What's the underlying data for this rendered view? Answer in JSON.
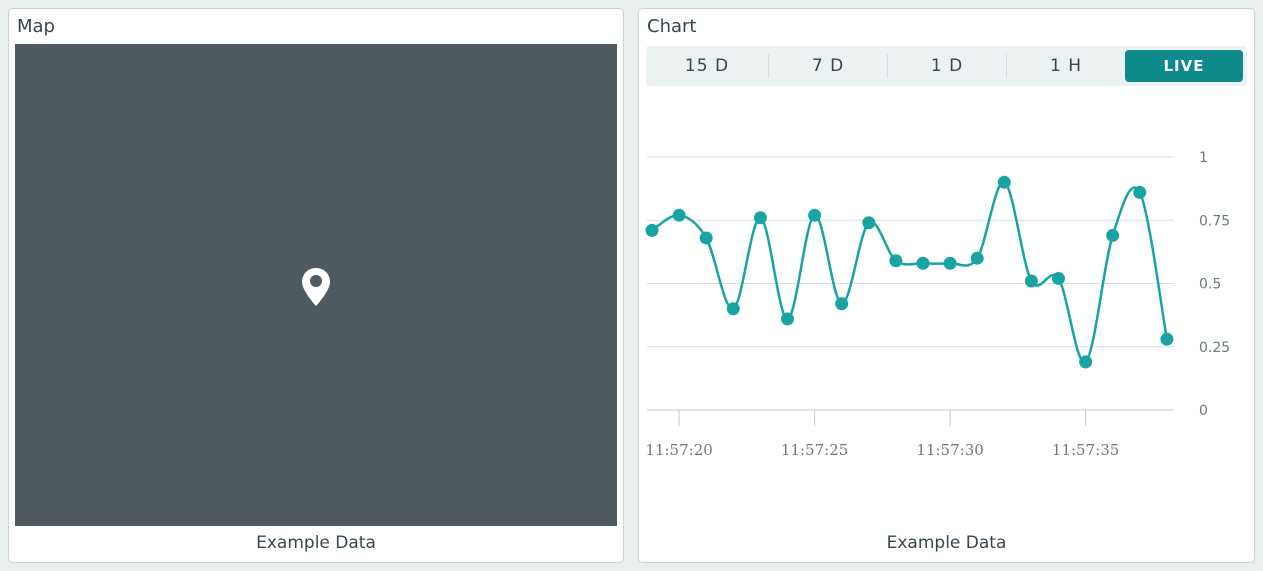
{
  "map_widget": {
    "title": "Map",
    "footer": "Example Data",
    "map_background": "#4e5a60",
    "marker_icon": "map-pin-icon"
  },
  "chart_widget": {
    "title": "Chart",
    "footer": "Example Data",
    "ranges": [
      "15 D",
      "7 D",
      "1 D",
      "1 H",
      "LIVE"
    ],
    "selected_range": "LIVE",
    "accent_color": "#0e8a8a",
    "line_color": "#1aa3a3"
  },
  "chart_data": {
    "type": "line",
    "smooth": true,
    "markers": true,
    "grid": true,
    "y_axis_position": "right",
    "ylim": [
      0,
      1
    ],
    "yticks": [
      "0",
      "0.25",
      "0.5",
      "0.75",
      "1"
    ],
    "x_ticks": [
      "11:57:20",
      "11:57:25",
      "11:57:30",
      "11:57:35"
    ],
    "x_start": "11:57:19",
    "x_step_seconds": 1,
    "values": [
      0.71,
      0.77,
      0.68,
      0.4,
      0.76,
      0.36,
      0.77,
      0.42,
      0.74,
      0.59,
      0.58,
      0.58,
      0.6,
      0.9,
      0.51,
      0.52,
      0.19,
      0.69,
      0.86,
      0.28
    ]
  }
}
